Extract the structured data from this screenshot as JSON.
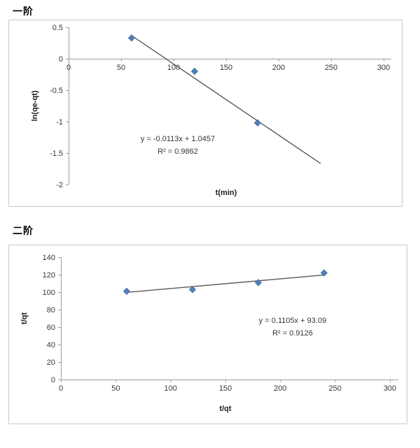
{
  "page": {
    "background": "#ffffff"
  },
  "colors": {
    "marker_fill": "#4F81BD",
    "marker_edge": "#3A6399",
    "trendline": "#595959",
    "axis_line": "#9E9E9E",
    "tick_text": "#363636",
    "axis_title_text": "#1a1a1a",
    "equation_text": "#363636",
    "chart_border": "#c7c7c7",
    "section_title_text": "#000000"
  },
  "chart_data": [
    {
      "type": "scatter",
      "title": "一阶",
      "xlabel": "t(min)",
      "ylabel": "ln(qe-qt)",
      "xlim": [
        0,
        300
      ],
      "ylim": [
        -2,
        0.5
      ],
      "xticks": [
        0,
        50,
        100,
        150,
        200,
        250,
        300
      ],
      "yticks": [
        0.5,
        0,
        -0.5,
        -1,
        -1.5,
        -2
      ],
      "x_axis_at_y": 0,
      "grid": false,
      "legend": "none",
      "points": [
        [
          60,
          0.33
        ],
        [
          120,
          -0.2
        ],
        [
          180,
          -1.02
        ]
      ],
      "trendline": {
        "slope": -0.0113,
        "intercept": 1.0457,
        "x_start": 60,
        "x_end": 240
      },
      "equation": "y = -0.0113x + 1.0457",
      "r_squared": "R² = 0.9862"
    },
    {
      "type": "scatter",
      "title": "二阶",
      "xlabel": "t/qt",
      "ylabel": "t/qt",
      "xlim": [
        0,
        300
      ],
      "ylim": [
        0,
        140
      ],
      "xticks": [
        0,
        50,
        100,
        150,
        200,
        250,
        300
      ],
      "yticks": [
        140,
        120,
        100,
        80,
        60,
        40,
        20,
        0
      ],
      "x_axis_at_y": 0,
      "grid": false,
      "legend": "none",
      "points": [
        [
          60,
          101
        ],
        [
          120,
          103
        ],
        [
          180,
          111
        ],
        [
          240,
          122
        ]
      ],
      "trendline": {
        "slope": 0.1105,
        "intercept": 93.09,
        "x_start": 60,
        "x_end": 240
      },
      "equation": "y = 0.1105x + 93.09",
      "r_squared": "R² = 0.9126"
    }
  ]
}
